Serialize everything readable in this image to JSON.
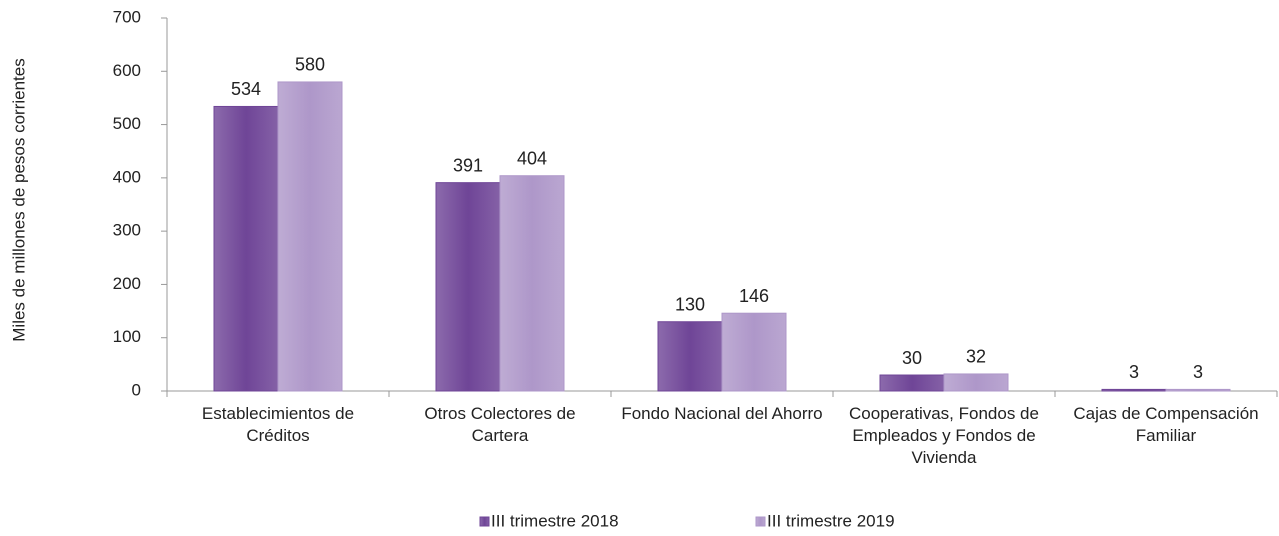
{
  "chart_data": {
    "type": "bar",
    "y_label": "Miles de millones de pesos corrientes",
    "categories": [
      "Establecimientos de Créditos",
      "Otros Colectores de Cartera",
      "Fondo Nacional del Ahorro",
      "Cooperativas, Fondos de Empleados y Fondos de Vivienda",
      "Cajas de Compensación Familiar"
    ],
    "series": [
      {
        "name": "III trimestre 2018",
        "color": "#6f4597",
        "values": [
          534,
          391,
          130,
          30,
          3
        ]
      },
      {
        "name": "III trimestre 2019",
        "color": "#ae97c9",
        "values": [
          580,
          404,
          146,
          32,
          3
        ]
      }
    ],
    "ylim": [
      0,
      700
    ],
    "yticks": [
      0,
      100,
      200,
      300,
      400,
      500,
      600,
      700
    ],
    "legend": "bottom"
  }
}
